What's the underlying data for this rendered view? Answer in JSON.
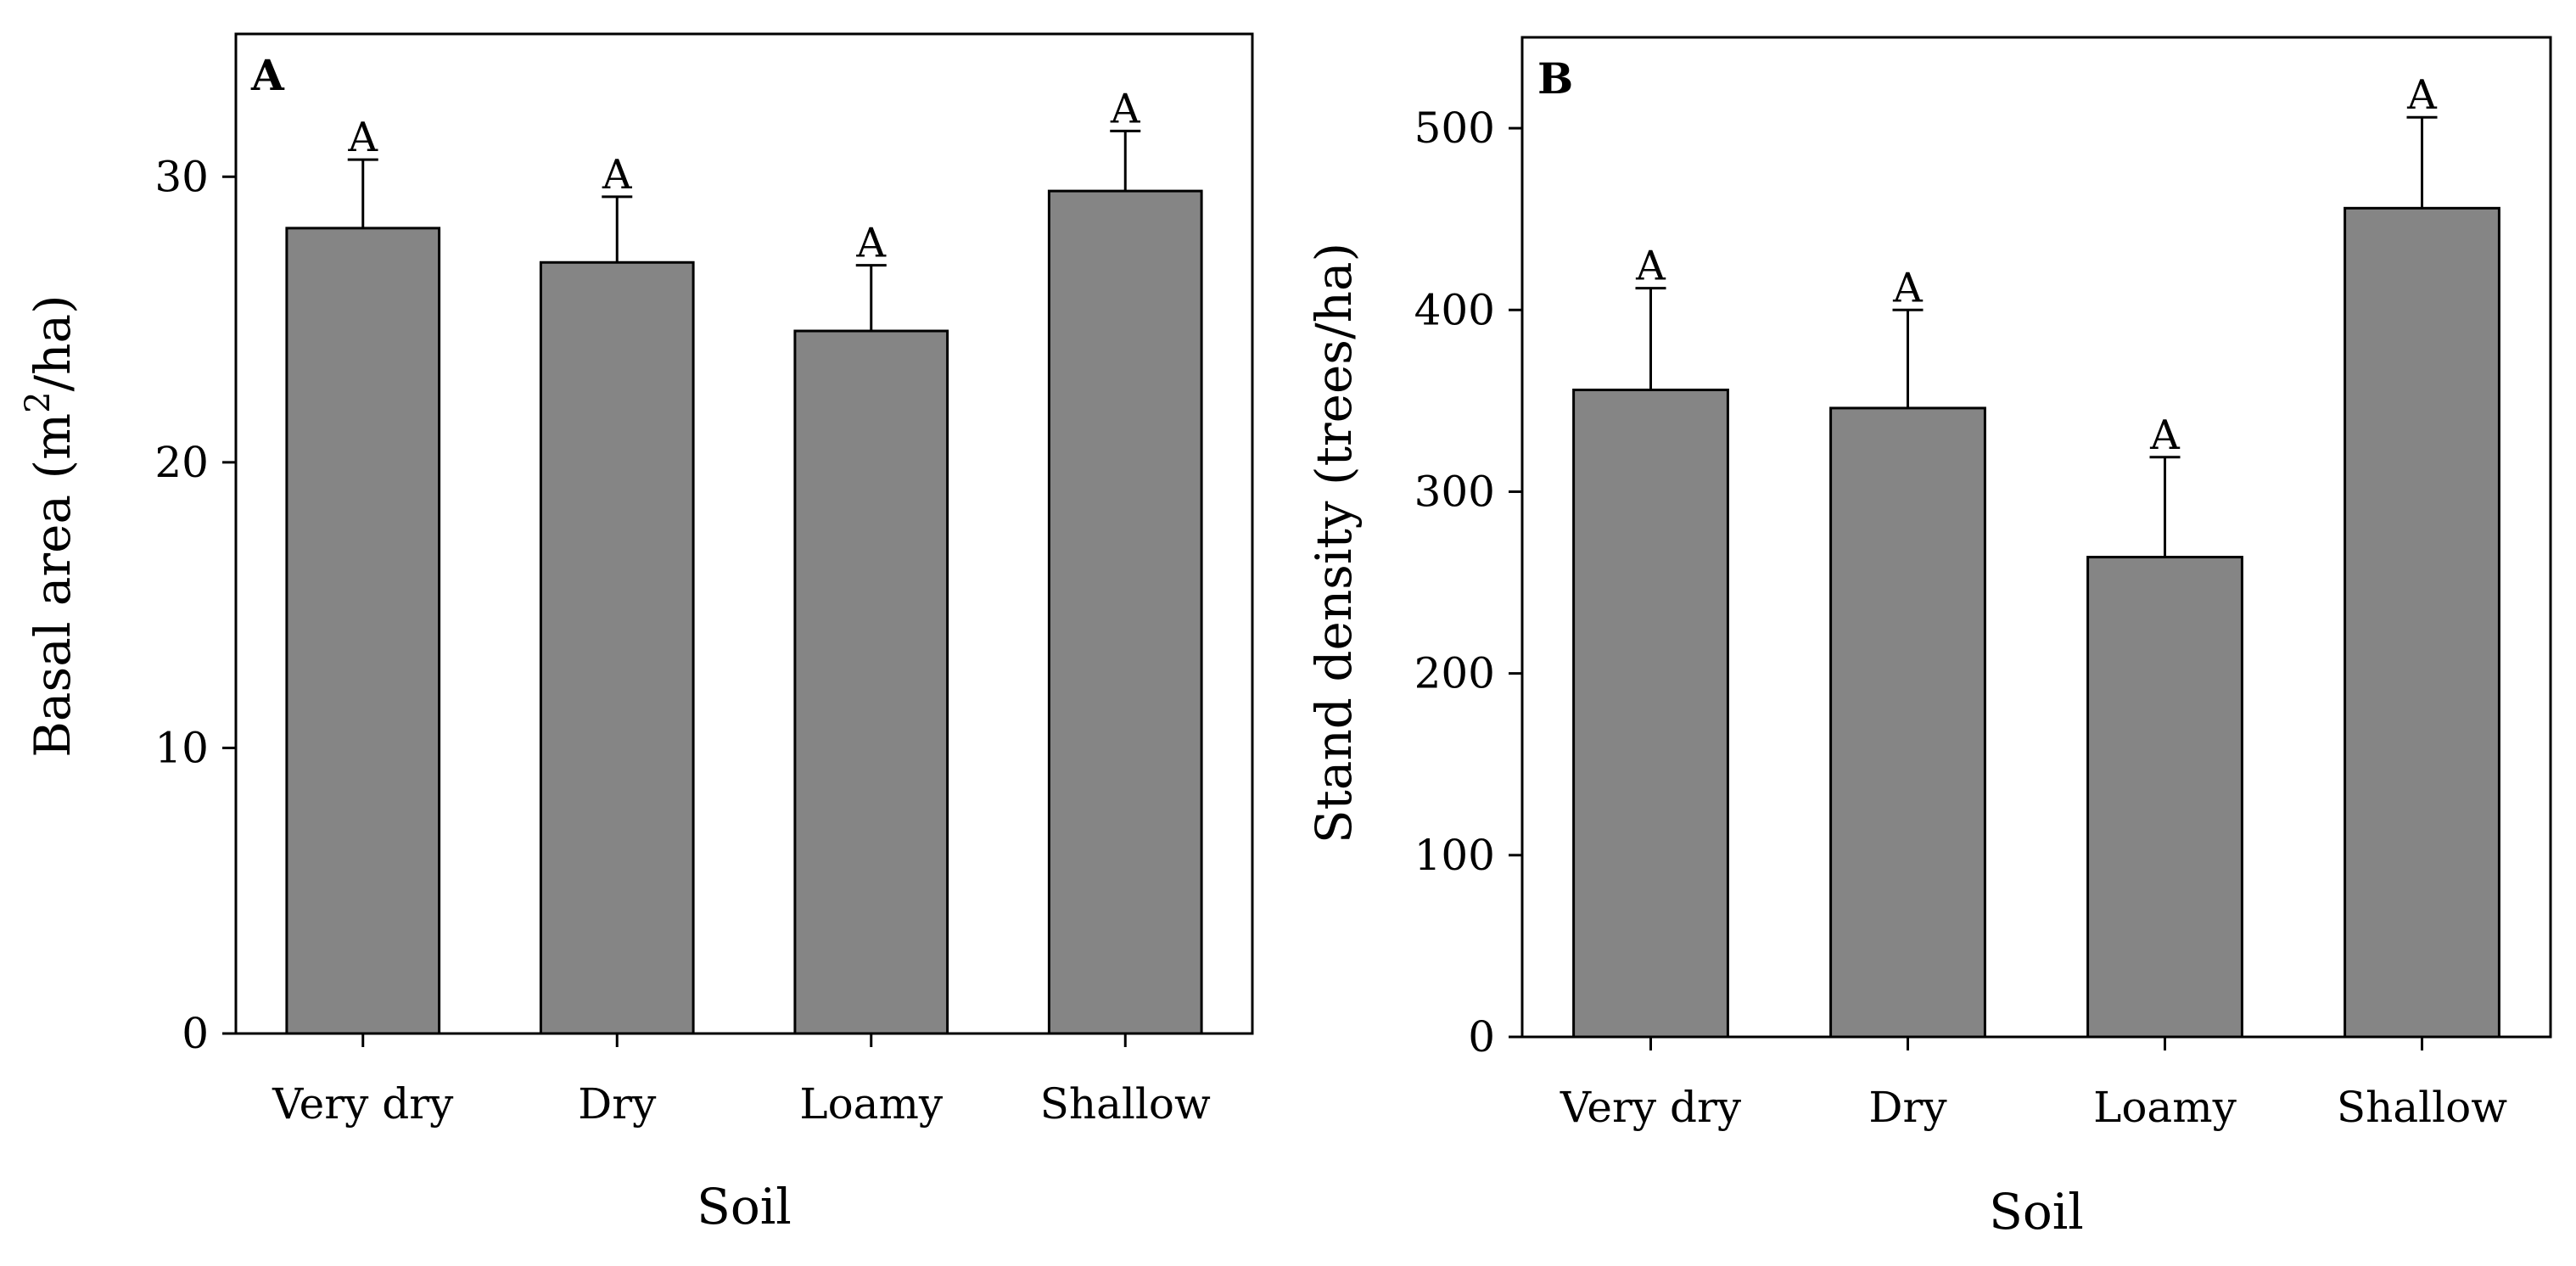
{
  "chart_data": [
    {
      "type": "bar",
      "panel_label": "A",
      "categories": [
        "Very dry",
        "Dry",
        "Loamy",
        "Shallow"
      ],
      "values": [
        28.2,
        27.0,
        24.6,
        29.5
      ],
      "error_upper": [
        30.6,
        29.3,
        26.9,
        31.6
      ],
      "significance_letters": [
        "A",
        "A",
        "A",
        "A"
      ],
      "xlabel": "Soil",
      "ylabel_main": "Basal area (m",
      "ylabel_sup": "2",
      "ylabel_tail": "/ha)",
      "ylim": [
        0,
        35
      ],
      "yticks": [
        0,
        10,
        20,
        30
      ],
      "ytick_labels": [
        "0",
        "10",
        "20",
        "30"
      ]
    },
    {
      "type": "bar",
      "panel_label": "B",
      "categories": [
        "Very dry",
        "Dry",
        "Loamy",
        "Shallow"
      ],
      "values": [
        356,
        346,
        264,
        456
      ],
      "error_upper": [
        412,
        400,
        319,
        506
      ],
      "significance_letters": [
        "A",
        "A",
        "A",
        "A"
      ],
      "xlabel": "Soil",
      "ylabel_main": "Stand density (trees/ha)",
      "ylim": [
        0,
        550
      ],
      "yticks": [
        0,
        100,
        200,
        300,
        400,
        500
      ],
      "ytick_labels": [
        "0",
        "100",
        "200",
        "300",
        "400",
        "500"
      ]
    }
  ]
}
